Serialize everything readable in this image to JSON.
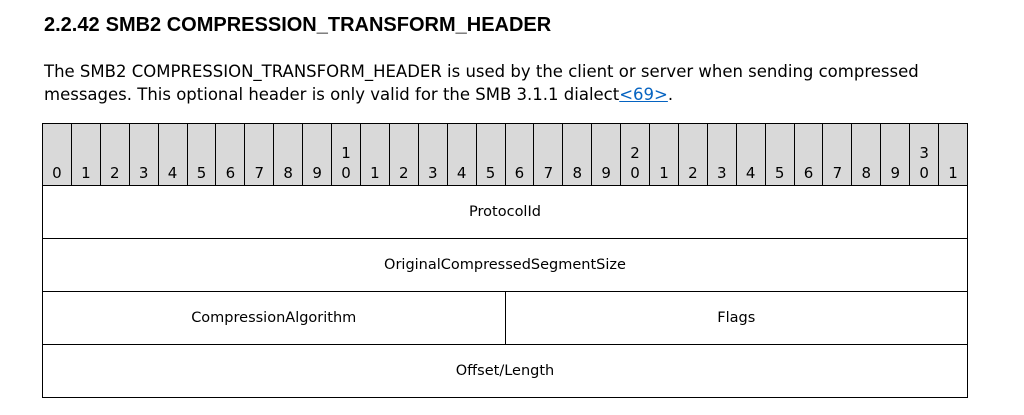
{
  "section": {
    "number": "2.2.42",
    "title": "SMB2 COMPRESSION_TRANSFORM_HEADER"
  },
  "intro": {
    "text": "The SMB2 COMPRESSION_TRANSFORM_HEADER is used by the client or server when sending compressed messages. This optional header is only valid for the SMB 3.1.1 dialect",
    "link": "<69>",
    "suffix": "."
  },
  "bit_header": [
    [
      "",
      "0"
    ],
    [
      "",
      "1"
    ],
    [
      "",
      "2"
    ],
    [
      "",
      "3"
    ],
    [
      "",
      "4"
    ],
    [
      "",
      "5"
    ],
    [
      "",
      "6"
    ],
    [
      "",
      "7"
    ],
    [
      "",
      "8"
    ],
    [
      "",
      "9"
    ],
    [
      "1",
      "0"
    ],
    [
      "",
      "1"
    ],
    [
      "",
      "2"
    ],
    [
      "",
      "3"
    ],
    [
      "",
      "4"
    ],
    [
      "",
      "5"
    ],
    [
      "",
      "6"
    ],
    [
      "",
      "7"
    ],
    [
      "",
      "8"
    ],
    [
      "",
      "9"
    ],
    [
      "2",
      "0"
    ],
    [
      "",
      "1"
    ],
    [
      "",
      "2"
    ],
    [
      "",
      "3"
    ],
    [
      "",
      "4"
    ],
    [
      "",
      "5"
    ],
    [
      "",
      "6"
    ],
    [
      "",
      "7"
    ],
    [
      "",
      "8"
    ],
    [
      "",
      "9"
    ],
    [
      "3",
      "0"
    ],
    [
      "",
      "1"
    ]
  ],
  "fields": {
    "protocol_id": "ProtocolId",
    "original_size": "OriginalCompressedSegmentSize",
    "compression_algorithm": "CompressionAlgorithm",
    "flags": "Flags",
    "offset_length": "Offset/Length"
  }
}
